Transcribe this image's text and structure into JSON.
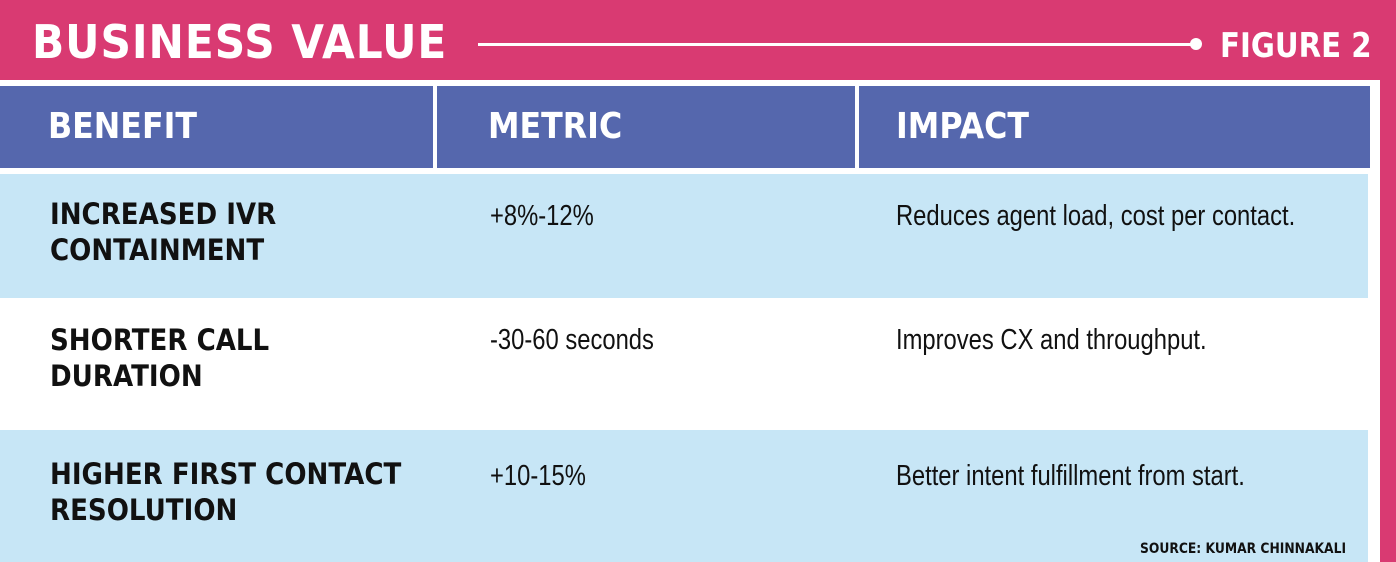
{
  "header": {
    "title": "BUSINESS VALUE",
    "figure_label": "FIGURE 2"
  },
  "table": {
    "columns": [
      "BENEFIT",
      "METRIC",
      "IMPACT"
    ],
    "rows": [
      {
        "benefit": "INCREASED IVR\nCONTAINMENT",
        "metric": "+8%-12%",
        "impact": "Reduces agent load, cost per contact."
      },
      {
        "benefit": "SHORTER CALL\nDURATION",
        "metric": "-30-60 seconds",
        "impact": "Improves CX and throughput."
      },
      {
        "benefit": "HIGHER FIRST CONTACT\nRESOLUTION",
        "metric": "+10-15%",
        "impact": "Better intent fulfillment from start."
      }
    ]
  },
  "source": "SOURCE: KUMAR CHINNAKALI",
  "colors": {
    "brand_magenta": "#d93a72",
    "header_blue": "#5567ad",
    "row_shade": "#c7e6f6"
  }
}
